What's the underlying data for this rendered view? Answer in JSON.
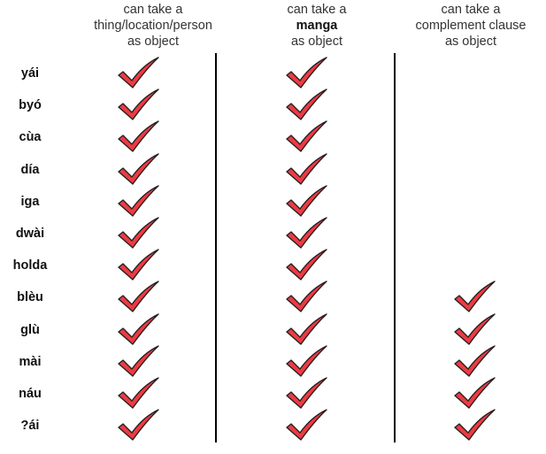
{
  "columns": [
    {
      "lines": [
        {
          "text": "can take a",
          "bold": false
        },
        {
          "text": "thing/location/person",
          "bold": false
        },
        {
          "text": "as object",
          "bold": false
        }
      ]
    },
    {
      "lines": [
        {
          "text": "can take a",
          "bold": false
        },
        {
          "text": "manga",
          "bold": true
        },
        {
          "text": "as object",
          "bold": false
        }
      ]
    },
    {
      "lines": [
        {
          "text": "can take a",
          "bold": false
        },
        {
          "text": "complement clause",
          "bold": false
        },
        {
          "text": "as object",
          "bold": false
        }
      ]
    }
  ],
  "rows": [
    {
      "verb": "yái",
      "checks": [
        true,
        true,
        false
      ]
    },
    {
      "verb": "byó",
      "checks": [
        true,
        true,
        false
      ]
    },
    {
      "verb": "cùa",
      "checks": [
        true,
        true,
        false
      ]
    },
    {
      "verb": "día",
      "checks": [
        true,
        true,
        false
      ]
    },
    {
      "verb": "iga",
      "checks": [
        true,
        true,
        false
      ]
    },
    {
      "verb": "dwài",
      "checks": [
        true,
        true,
        false
      ]
    },
    {
      "verb": "holda",
      "checks": [
        true,
        true,
        false
      ]
    },
    {
      "verb": "blèu",
      "checks": [
        true,
        true,
        true
      ]
    },
    {
      "verb": "glù",
      "checks": [
        true,
        true,
        true
      ]
    },
    {
      "verb": "mài",
      "checks": [
        true,
        true,
        true
      ]
    },
    {
      "verb": "náu",
      "checks": [
        true,
        true,
        true
      ]
    },
    {
      "verb": "?ái",
      "checks": [
        true,
        true,
        true
      ]
    }
  ],
  "colors": {
    "check_fill": "#ee3a43",
    "check_stroke": "#222222",
    "divider": "#000000"
  },
  "icon": "checkmark-icon"
}
